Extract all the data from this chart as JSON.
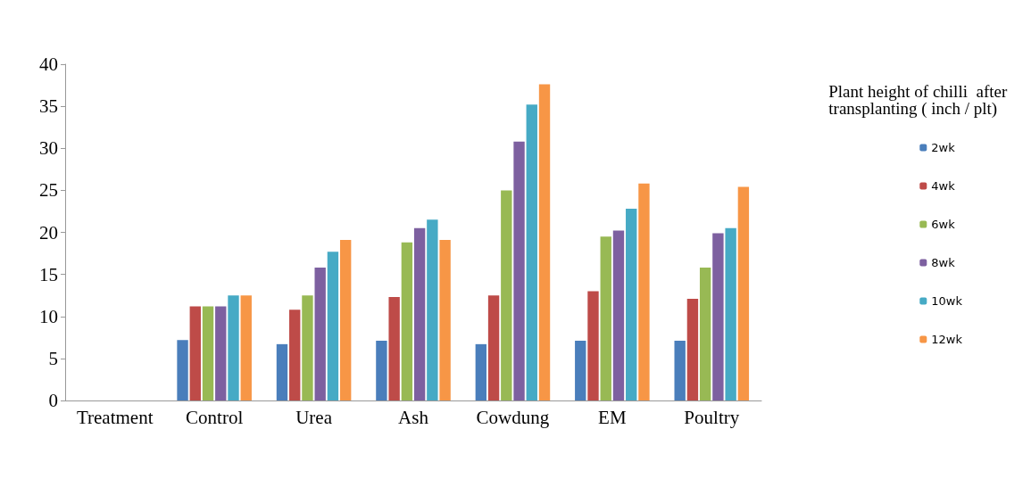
{
  "chart_data": {
    "type": "bar",
    "title": "Plant height of chilli  after transplanting ( inch / plt)",
    "categories": [
      "Treatment",
      "Control",
      "Urea",
      "Ash",
      "Cowdung",
      "EM",
      "Poultry"
    ],
    "series": [
      {
        "name": "2wk",
        "color": "#4a7ebb",
        "values": [
          0,
          7.2,
          6.7,
          7.1,
          6.7,
          7.1,
          7.1
        ]
      },
      {
        "name": "4wk",
        "color": "#be4b48",
        "values": [
          0,
          11.2,
          10.8,
          12.3,
          12.5,
          13,
          12.1
        ]
      },
      {
        "name": "6wk",
        "color": "#98b954",
        "values": [
          0,
          11.2,
          12.5,
          18.8,
          25,
          19.5,
          15.8
        ]
      },
      {
        "name": "8wk",
        "color": "#7d60a0",
        "values": [
          0,
          11.2,
          15.8,
          20.5,
          30.8,
          20.2,
          19.9
        ]
      },
      {
        "name": "10wk",
        "color": "#46aac5",
        "values": [
          0,
          12.5,
          17.7,
          21.5,
          35.2,
          22.8,
          20.5
        ]
      },
      {
        "name": "12wk",
        "color": "#f79646",
        "values": [
          0,
          12.5,
          19.1,
          19.1,
          37.6,
          25.8,
          25.4
        ]
      }
    ],
    "ylim": [
      0,
      40
    ],
    "yticks": [
      0,
      5,
      10,
      15,
      20,
      25,
      30,
      35,
      40
    ],
    "grid": false,
    "legend": "right"
  }
}
